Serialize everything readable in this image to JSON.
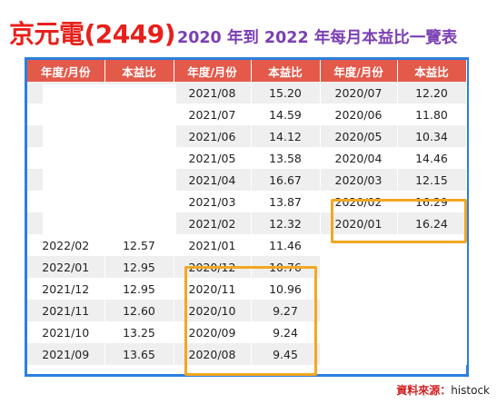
{
  "title": {
    "company": "京元電(2449)",
    "subtitle": "2020 年到 2022 年每月本益比一覽表"
  },
  "headers": [
    "年度/月份",
    "本益比",
    "年度/月份",
    "本益比",
    "年度/月份",
    "本益比"
  ],
  "rows": [
    [
      "",
      "",
      "2021/08",
      "15.20",
      "2020/07",
      "12.20"
    ],
    [
      "",
      "",
      "2021/07",
      "14.59",
      "2020/06",
      "11.80"
    ],
    [
      "",
      "",
      "2021/06",
      "14.12",
      "2020/05",
      "10.34"
    ],
    [
      "",
      "",
      "2021/05",
      "13.58",
      "2020/04",
      "14.46"
    ],
    [
      "",
      "",
      "2021/04",
      "16.67",
      "2020/03",
      "12.15"
    ],
    [
      "",
      "",
      "2021/03",
      "13.87",
      "2020/02",
      "16.29"
    ],
    [
      "",
      "",
      "2021/02",
      "12.32",
      "2020/01",
      "16.24"
    ],
    [
      "2022/02",
      "12.57",
      "2021/01",
      "11.46",
      "",
      ""
    ],
    [
      "2022/01",
      "12.95",
      "2020/12",
      "10.76",
      "",
      ""
    ],
    [
      "2021/12",
      "12.95",
      "2020/11",
      "10.96",
      "",
      ""
    ],
    [
      "2021/11",
      "12.60",
      "2020/10",
      "9.27",
      "",
      ""
    ],
    [
      "2021/10",
      "13.25",
      "2020/09",
      "9.24",
      "",
      ""
    ],
    [
      "2021/09",
      "13.65",
      "2020/08",
      "9.45",
      "",
      ""
    ]
  ],
  "source": {
    "label": "資料來源：",
    "name": "histock"
  },
  "colors": {
    "title": "#e8201b",
    "subtitle": "#7b3fb3",
    "header_bg": "#e35a4a",
    "frame": "#2b7fe0",
    "highlight": "#f3a722"
  }
}
